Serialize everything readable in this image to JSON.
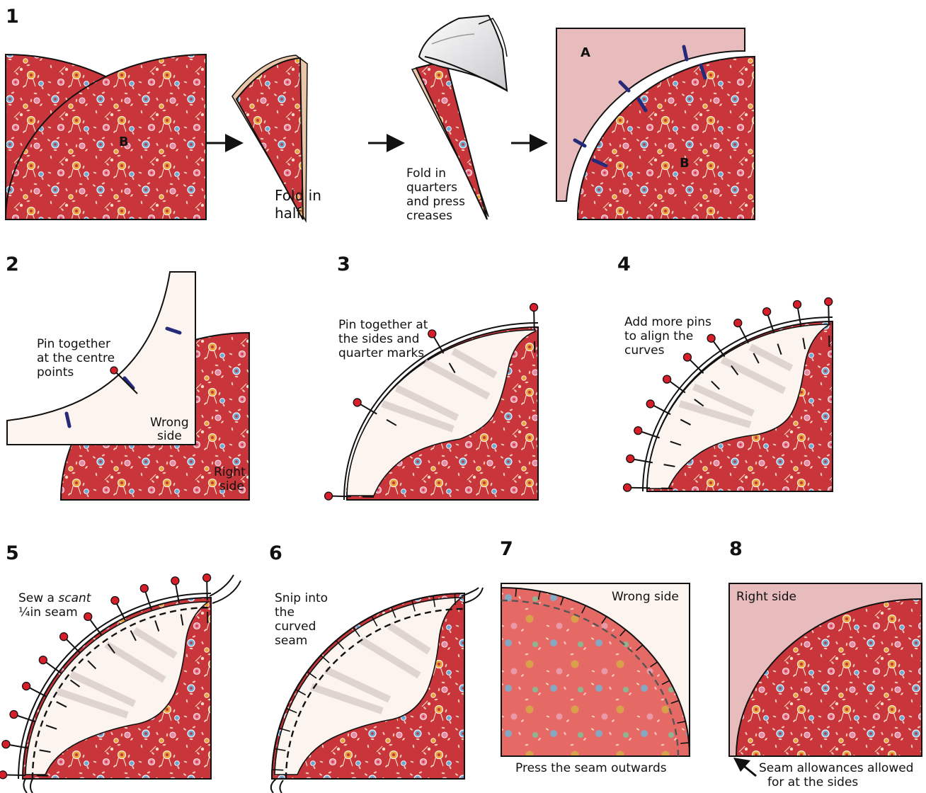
{
  "steps": {
    "s1": "1",
    "s2": "2",
    "s3": "3",
    "s4": "4",
    "s5": "5",
    "s6": "6",
    "s7": "7",
    "s8": "8"
  },
  "step1": {
    "piece_b": "B",
    "fold_half_1": "Fold in",
    "fold_half_2": "half",
    "fold_q_1": "Fold in",
    "fold_q_2": "quarters",
    "fold_q_3": "and press",
    "fold_q_4": "creases",
    "piece_a": "A",
    "piece_b2": "B"
  },
  "step2": {
    "pin_1": "Pin together",
    "pin_2": "at the centre",
    "pin_3": "points",
    "wrong_1": "Wrong",
    "wrong_2": "side",
    "right_1": "Right",
    "right_2": "side"
  },
  "step3": {
    "l1": "Pin together at",
    "l2": "the sides and",
    "l3": "quarter marks"
  },
  "step4": {
    "l1": "Add more pins",
    "l2": "to align the",
    "l3": "curves"
  },
  "step5": {
    "l1a": "Sew a ",
    "l1b": "scant",
    "l2": "¼in seam"
  },
  "step6": {
    "l1": "Snip into",
    "l2": "the",
    "l3": "curved",
    "l4": "seam"
  },
  "step7": {
    "wrong": "Wrong side",
    "caption": "Press the seam outwards"
  },
  "step8": {
    "right": "Right side",
    "note_1": "Seam allowances allowed",
    "note_2": "for at the sides"
  },
  "colors": {
    "fabric_red": "#c8353a",
    "fabric_light": "#e56a66",
    "background_pink": "#e8bcbc",
    "wrong_side_cream": "#fbf4ef",
    "pin_red": "#d81e2a",
    "mark_navy": "#262a7a"
  }
}
